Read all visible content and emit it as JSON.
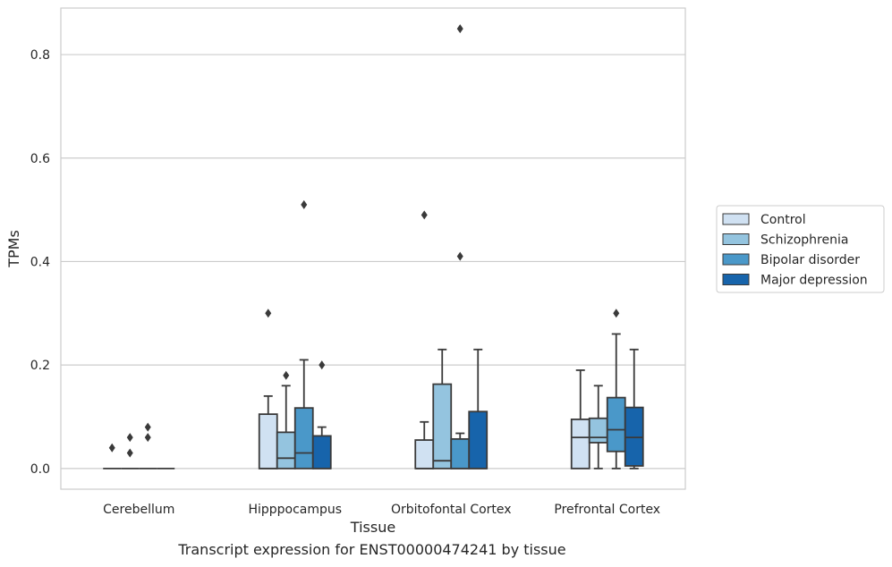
{
  "caption": "Transcript expression for ENST00000474241 by tissue",
  "colors": {
    "series": [
      "#d0e1f2",
      "#94c4df",
      "#4a98c9",
      "#1764ab"
    ],
    "box_edge": "#3a3a3a",
    "grid": "#cccccc",
    "frame": "#cccccc",
    "text": "#262626"
  },
  "chart_data": {
    "type": "boxplot",
    "xlabel": "Tissue",
    "ylabel": "TPMs",
    "ylim": [
      -0.04,
      0.89
    ],
    "yticks": [
      0.0,
      0.2,
      0.4,
      0.6,
      0.8
    ],
    "ytick_labels": [
      "0.0",
      "0.2",
      "0.4",
      "0.6",
      "0.8"
    ],
    "grid": "horizontal",
    "legend_position": "outside-right",
    "categories": [
      "Cerebellum",
      "Hipppocampus",
      "Orbitofontal Cortex",
      "Prefrontal Cortex"
    ],
    "series": [
      {
        "name": "Control",
        "boxes": [
          {
            "whislo": 0,
            "q1": 0,
            "med": 0,
            "q3": 0,
            "whishi": 0,
            "fliers": [
              0.04
            ]
          },
          {
            "whislo": 0,
            "q1": 0,
            "med": 0,
            "q3": 0.105,
            "whishi": 0.14,
            "fliers": [
              0.3
            ]
          },
          {
            "whislo": 0,
            "q1": 0,
            "med": 0,
            "q3": 0.055,
            "whishi": 0.09,
            "fliers": [
              0.49
            ]
          },
          {
            "whislo": 0,
            "q1": 0,
            "med": 0.06,
            "q3": 0.095,
            "whishi": 0.19,
            "fliers": []
          }
        ]
      },
      {
        "name": "Schizophrenia",
        "boxes": [
          {
            "whislo": 0,
            "q1": 0,
            "med": 0,
            "q3": 0,
            "whishi": 0,
            "fliers": [
              0.03,
              0.06
            ]
          },
          {
            "whislo": 0,
            "q1": 0,
            "med": 0.02,
            "q3": 0.07,
            "whishi": 0.16,
            "fliers": [
              0.18
            ]
          },
          {
            "whislo": 0,
            "q1": 0,
            "med": 0.015,
            "q3": 0.163,
            "whishi": 0.23,
            "fliers": []
          },
          {
            "whislo": 0,
            "q1": 0.05,
            "med": 0.06,
            "q3": 0.097,
            "whishi": 0.16,
            "fliers": []
          }
        ]
      },
      {
        "name": "Bipolar disorder",
        "boxes": [
          {
            "whislo": 0,
            "q1": 0,
            "med": 0,
            "q3": 0,
            "whishi": 0,
            "fliers": [
              0.06,
              0.08
            ]
          },
          {
            "whislo": 0,
            "q1": 0,
            "med": 0.03,
            "q3": 0.117,
            "whishi": 0.21,
            "fliers": [
              0.51
            ]
          },
          {
            "whislo": 0,
            "q1": 0,
            "med": 0,
            "q3": 0.057,
            "whishi": 0.068,
            "fliers": [
              0.41,
              0.85
            ]
          },
          {
            "whislo": 0,
            "q1": 0.033,
            "med": 0.075,
            "q3": 0.137,
            "whishi": 0.26,
            "fliers": [
              0.3
            ]
          }
        ]
      },
      {
        "name": "Major depression",
        "boxes": [
          {
            "whislo": 0,
            "q1": 0,
            "med": 0,
            "q3": 0,
            "whishi": 0,
            "fliers": []
          },
          {
            "whislo": 0,
            "q1": 0,
            "med": 0,
            "q3": 0.063,
            "whishi": 0.08,
            "fliers": [
              0.2
            ]
          },
          {
            "whislo": 0,
            "q1": 0,
            "med": 0,
            "q3": 0.11,
            "whishi": 0.23,
            "fliers": []
          },
          {
            "whislo": 0,
            "q1": 0.005,
            "med": 0.06,
            "q3": 0.118,
            "whishi": 0.23,
            "fliers": []
          }
        ]
      }
    ]
  }
}
